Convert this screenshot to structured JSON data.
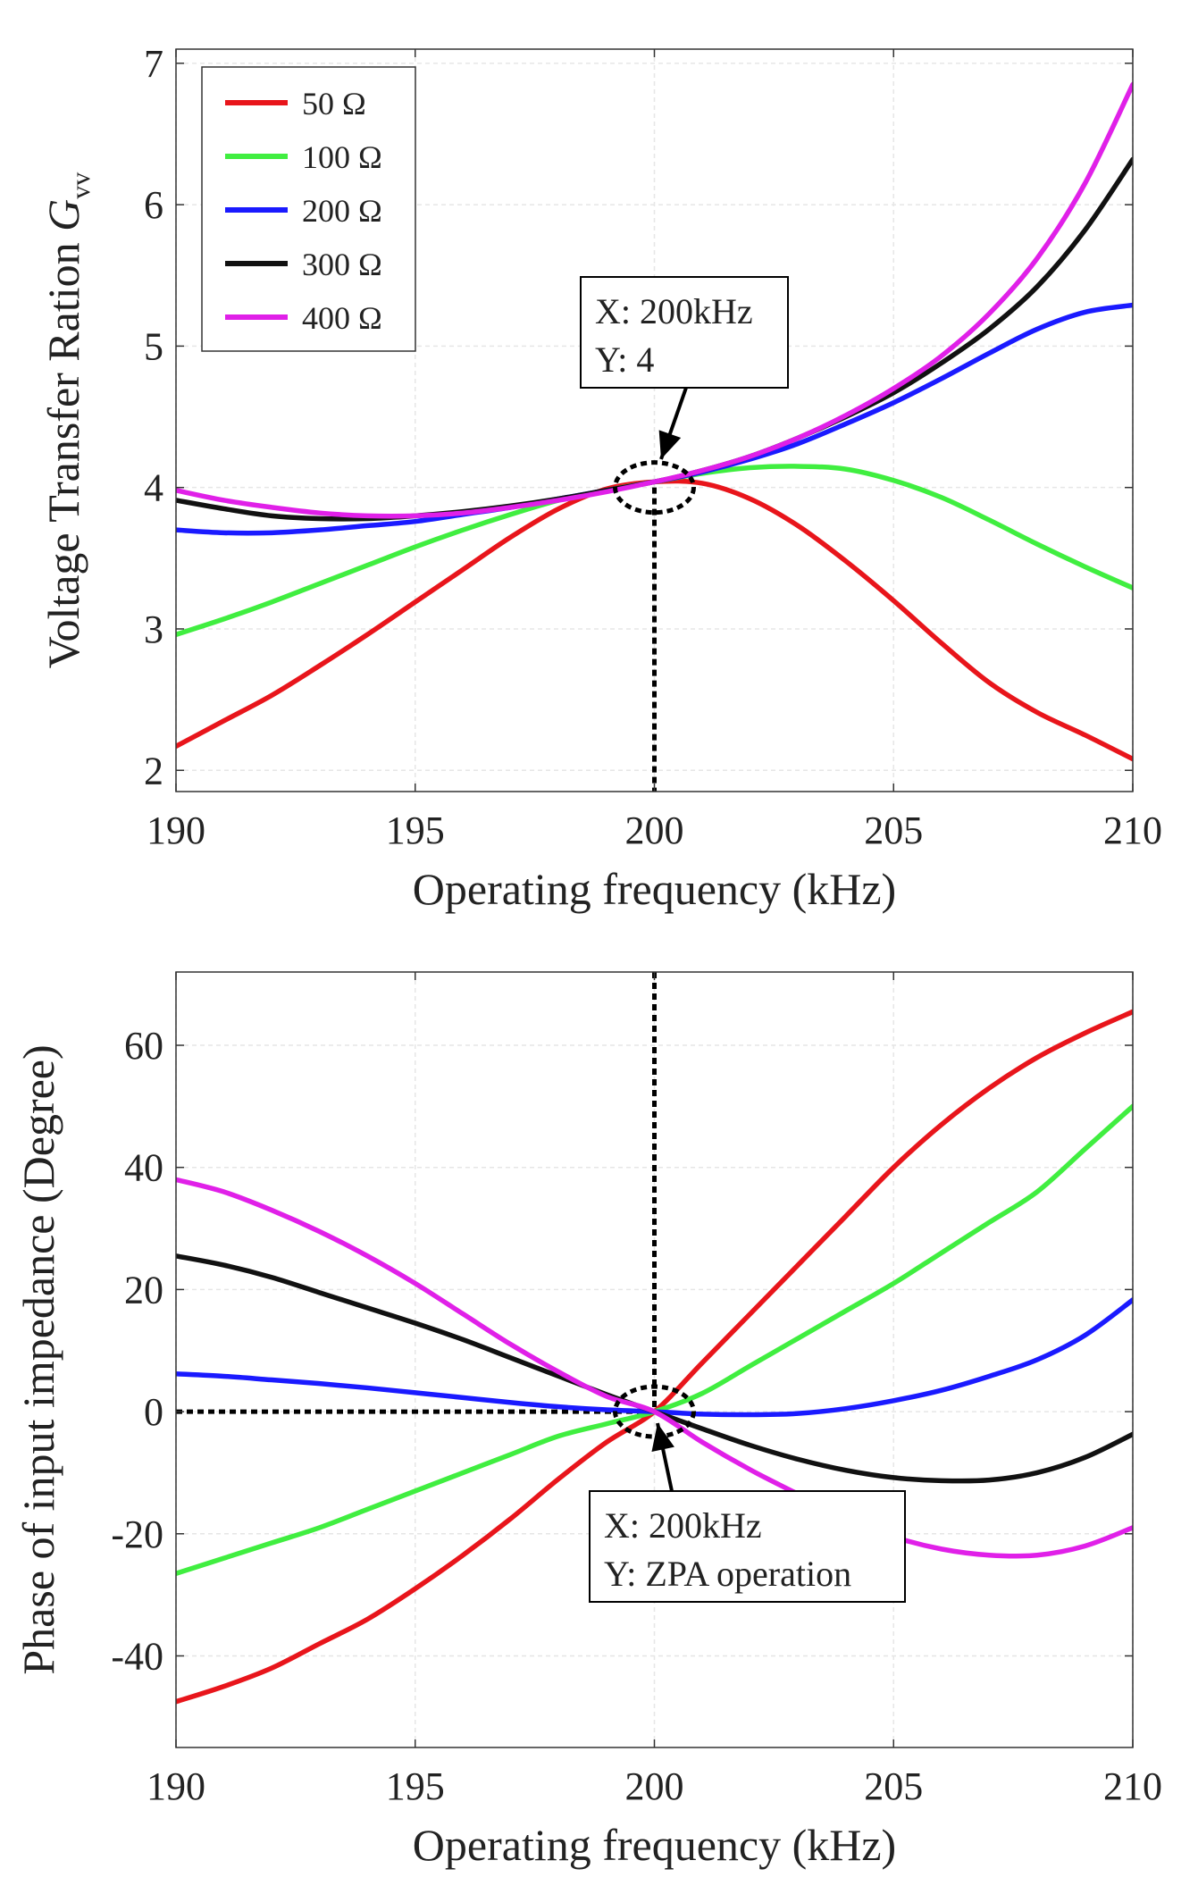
{
  "chart_data": [
    {
      "type": "line",
      "title": "",
      "xlabel": "Operating frequency (kHz)",
      "ylabel": "Voltage Transfer Ration ",
      "ylabel_symbol": "G",
      "ylabel_subscript": "vv",
      "xlim": [
        190,
        210
      ],
      "ylim": [
        1.85,
        7.1
      ],
      "xticks": [
        190,
        195,
        200,
        205,
        210
      ],
      "yticks": [
        2,
        3,
        4,
        5,
        6,
        7
      ],
      "grid": true,
      "legend_position": "top-left",
      "x": [
        190,
        191,
        192,
        193,
        194,
        195,
        196,
        197,
        198,
        199,
        200,
        201,
        202,
        203,
        204,
        205,
        206,
        207,
        208,
        209,
        210
      ],
      "series": [
        {
          "name": "50 Ω",
          "color": "#e8151b",
          "values": [
            2.17,
            2.35,
            2.53,
            2.74,
            2.96,
            3.19,
            3.42,
            3.65,
            3.85,
            3.99,
            4.04,
            4.03,
            3.92,
            3.73,
            3.48,
            3.2,
            2.9,
            2.62,
            2.41,
            2.25,
            2.08
          ]
        },
        {
          "name": "100 Ω",
          "color": "#40ee40",
          "values": [
            2.96,
            3.07,
            3.19,
            3.32,
            3.45,
            3.58,
            3.7,
            3.81,
            3.91,
            3.98,
            4.04,
            4.1,
            4.14,
            4.15,
            4.13,
            4.05,
            3.93,
            3.77,
            3.6,
            3.44,
            3.29
          ]
        },
        {
          "name": "200 Ω",
          "color": "#1a1aff",
          "values": [
            3.7,
            3.68,
            3.68,
            3.7,
            3.73,
            3.76,
            3.81,
            3.86,
            3.92,
            3.98,
            4.04,
            4.11,
            4.2,
            4.31,
            4.45,
            4.6,
            4.77,
            4.95,
            5.12,
            5.24,
            5.29
          ]
        },
        {
          "name": "300 Ω",
          "color": "#111111",
          "values": [
            3.91,
            3.85,
            3.8,
            3.78,
            3.78,
            3.8,
            3.83,
            3.87,
            3.92,
            3.98,
            4.04,
            4.12,
            4.22,
            4.35,
            4.5,
            4.67,
            4.88,
            5.12,
            5.42,
            5.82,
            6.32
          ]
        },
        {
          "name": "400 Ω",
          "color": "#e020e8",
          "values": [
            3.98,
            3.91,
            3.86,
            3.82,
            3.8,
            3.8,
            3.82,
            3.86,
            3.91,
            3.97,
            4.04,
            4.12,
            4.22,
            4.35,
            4.51,
            4.7,
            4.93,
            5.23,
            5.62,
            6.15,
            6.85
          ]
        }
      ],
      "annotation": {
        "line1": "X: 200kHz",
        "line2": "Y: 4",
        "x": 200,
        "y": 4
      }
    },
    {
      "type": "line",
      "title": "",
      "xlabel": "Operating frequency (kHz)",
      "ylabel": "Phase of input impedance (Degree)",
      "xlim": [
        190,
        210
      ],
      "ylim": [
        -55,
        72
      ],
      "xticks": [
        190,
        195,
        200,
        205,
        210
      ],
      "yticks": [
        -40,
        -20,
        0,
        20,
        40,
        60
      ],
      "grid": true,
      "x": [
        190,
        191,
        192,
        193,
        194,
        195,
        196,
        197,
        198,
        199,
        200,
        201,
        202,
        203,
        204,
        205,
        206,
        207,
        208,
        209,
        210
      ],
      "series": [
        {
          "name": "50 Ω",
          "color": "#e8151b",
          "values": [
            -47.5,
            -45,
            -42,
            -38,
            -34,
            -29,
            -23.5,
            -17.5,
            -11,
            -5,
            0,
            8,
            16,
            24,
            32,
            40,
            47,
            53,
            58,
            62,
            65.5
          ]
        },
        {
          "name": "100 Ω",
          "color": "#40ee40",
          "values": [
            -26.5,
            -24,
            -21.5,
            -19,
            -16,
            -13,
            -10,
            -7,
            -4,
            -2,
            0,
            3,
            7.5,
            12,
            16.5,
            21,
            26,
            31,
            36,
            43,
            50
          ]
        },
        {
          "name": "200 Ω",
          "color": "#1a1aff",
          "values": [
            6.2,
            5.8,
            5.2,
            4.6,
            3.9,
            3.1,
            2.3,
            1.5,
            0.8,
            0.3,
            0,
            -0.4,
            -0.5,
            -0.3,
            0.5,
            1.8,
            3.5,
            5.8,
            8.5,
            12.5,
            18.3
          ]
        },
        {
          "name": "300 Ω",
          "color": "#111111",
          "values": [
            25.5,
            24,
            22,
            19.5,
            17,
            14.5,
            11.8,
            8.8,
            5.8,
            2.8,
            0,
            -2.8,
            -5.5,
            -7.8,
            -9.6,
            -10.8,
            -11.3,
            -11.2,
            -10,
            -7.5,
            -3.7
          ]
        },
        {
          "name": "400 Ω",
          "color": "#e020e8",
          "values": [
            38,
            36,
            33,
            29.5,
            25.5,
            21,
            16,
            11,
            6.5,
            2.5,
            0,
            -5,
            -9.5,
            -13.5,
            -17.5,
            -20.5,
            -22.5,
            -23.5,
            -23.5,
            -22,
            -19
          ]
        }
      ],
      "annotation": {
        "line1": "X: 200kHz",
        "line2": "Y: ZPA operation",
        "x": 200,
        "y": 0
      }
    }
  ]
}
